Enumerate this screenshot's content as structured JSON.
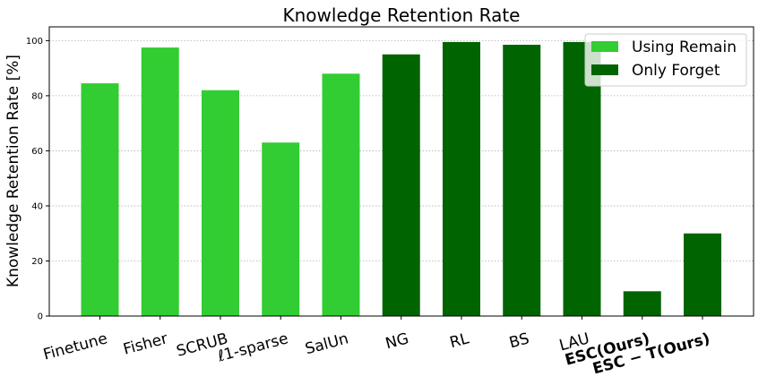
{
  "chart_data": {
    "type": "bar",
    "title": "Knowledge Retention Rate",
    "ylabel": "Knowledge Retention Rate [%]",
    "xlabel": "",
    "ylim": [
      0,
      105
    ],
    "yticks": [
      0,
      20,
      40,
      60,
      80,
      100
    ],
    "grid": "y-dotted",
    "legend_position": "top-right",
    "categories": [
      "Finetune",
      "Fisher",
      "SCRUB",
      "ℓ1-sparse",
      "SalUn",
      "NG",
      "RL",
      "BS",
      "LAU",
      "ESC(Ours)",
      "ESC − T(Ours)"
    ],
    "bold_categories": [
      "ESC(Ours)",
      "ESC − T(Ours)"
    ],
    "values": [
      84.5,
      97.5,
      82,
      63,
      88,
      95,
      99.5,
      98.5,
      99.5,
      9,
      30
    ],
    "groups": [
      "Using Remain",
      "Using Remain",
      "Using Remain",
      "Using Remain",
      "Using Remain",
      "Only Forget",
      "Only Forget",
      "Only Forget",
      "Only Forget",
      "Only Forget",
      "Only Forget"
    ],
    "legend": [
      {
        "name": "Using Remain",
        "color": "#32cd32"
      },
      {
        "name": "Only Forget",
        "color": "#006400"
      }
    ]
  }
}
